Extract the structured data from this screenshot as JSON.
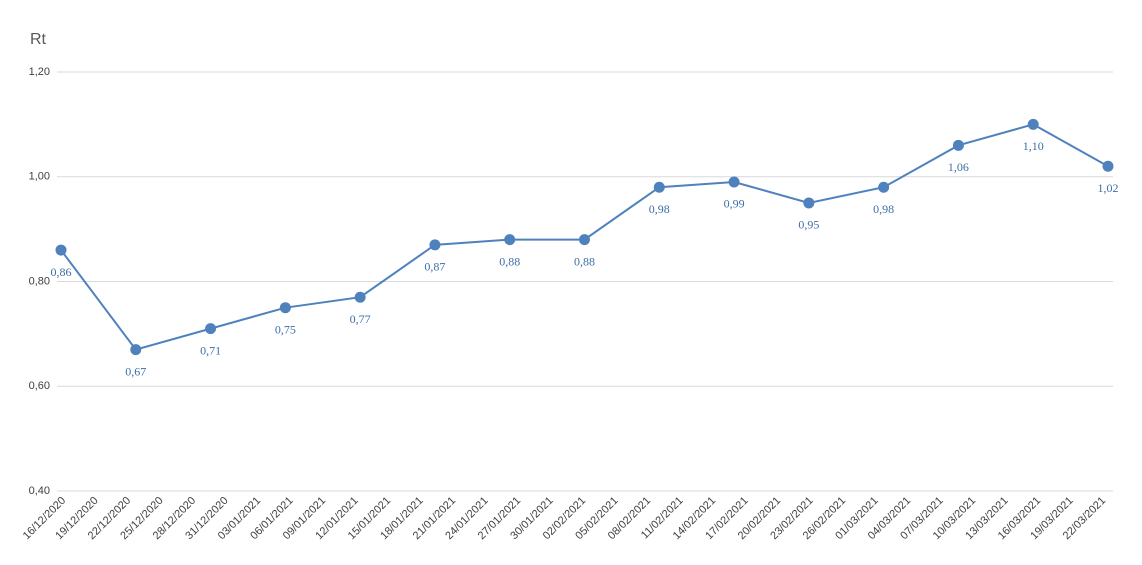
{
  "chart_data": {
    "type": "line",
    "title": "Rt",
    "xticks": [
      "16/12/2020",
      "19/12/2020",
      "22/12/2020",
      "25/12/2020",
      "28/12/2020",
      "31/12/2020",
      "03/01/2021",
      "06/01/2021",
      "09/01/2021",
      "12/01/2021",
      "15/01/2021",
      "18/01/2021",
      "21/01/2021",
      "24/01/2021",
      "27/01/2021",
      "30/01/2021",
      "02/02/2021",
      "05/02/2021",
      "08/02/2021",
      "11/02/2021",
      "14/02/2021",
      "17/02/2021",
      "20/02/2021",
      "23/02/2021",
      "26/02/2021",
      "01/03/2021",
      "04/03/2021",
      "07/03/2021",
      "10/03/2021",
      "13/03/2021",
      "16/03/2021",
      "19/03/2021",
      "22/03/2021"
    ],
    "values": [
      0.86,
      0.67,
      0.71,
      0.75,
      0.77,
      0.87,
      0.88,
      0.88,
      0.98,
      0.99,
      0.95,
      0.98,
      1.06,
      1.1,
      1.02
    ],
    "value_labels": [
      "0,86",
      "0,67",
      "0,71",
      "0,75",
      "0,77",
      "0,87",
      "0,88",
      "0,88",
      "0,98",
      "0,99",
      "0,95",
      "0,98",
      "1,06",
      "1,10",
      "1,02"
    ],
    "color": "#4f81bd",
    "ylim": [
      0.4,
      1.2
    ],
    "yticks": [
      {
        "value": 0.4,
        "label": "0,40"
      },
      {
        "value": 0.6,
        "label": "0,60"
      },
      {
        "value": 0.8,
        "label": "0,80"
      },
      {
        "value": 1.0,
        "label": "1,00"
      },
      {
        "value": 1.2,
        "label": "1,20"
      }
    ],
    "grid": true
  }
}
